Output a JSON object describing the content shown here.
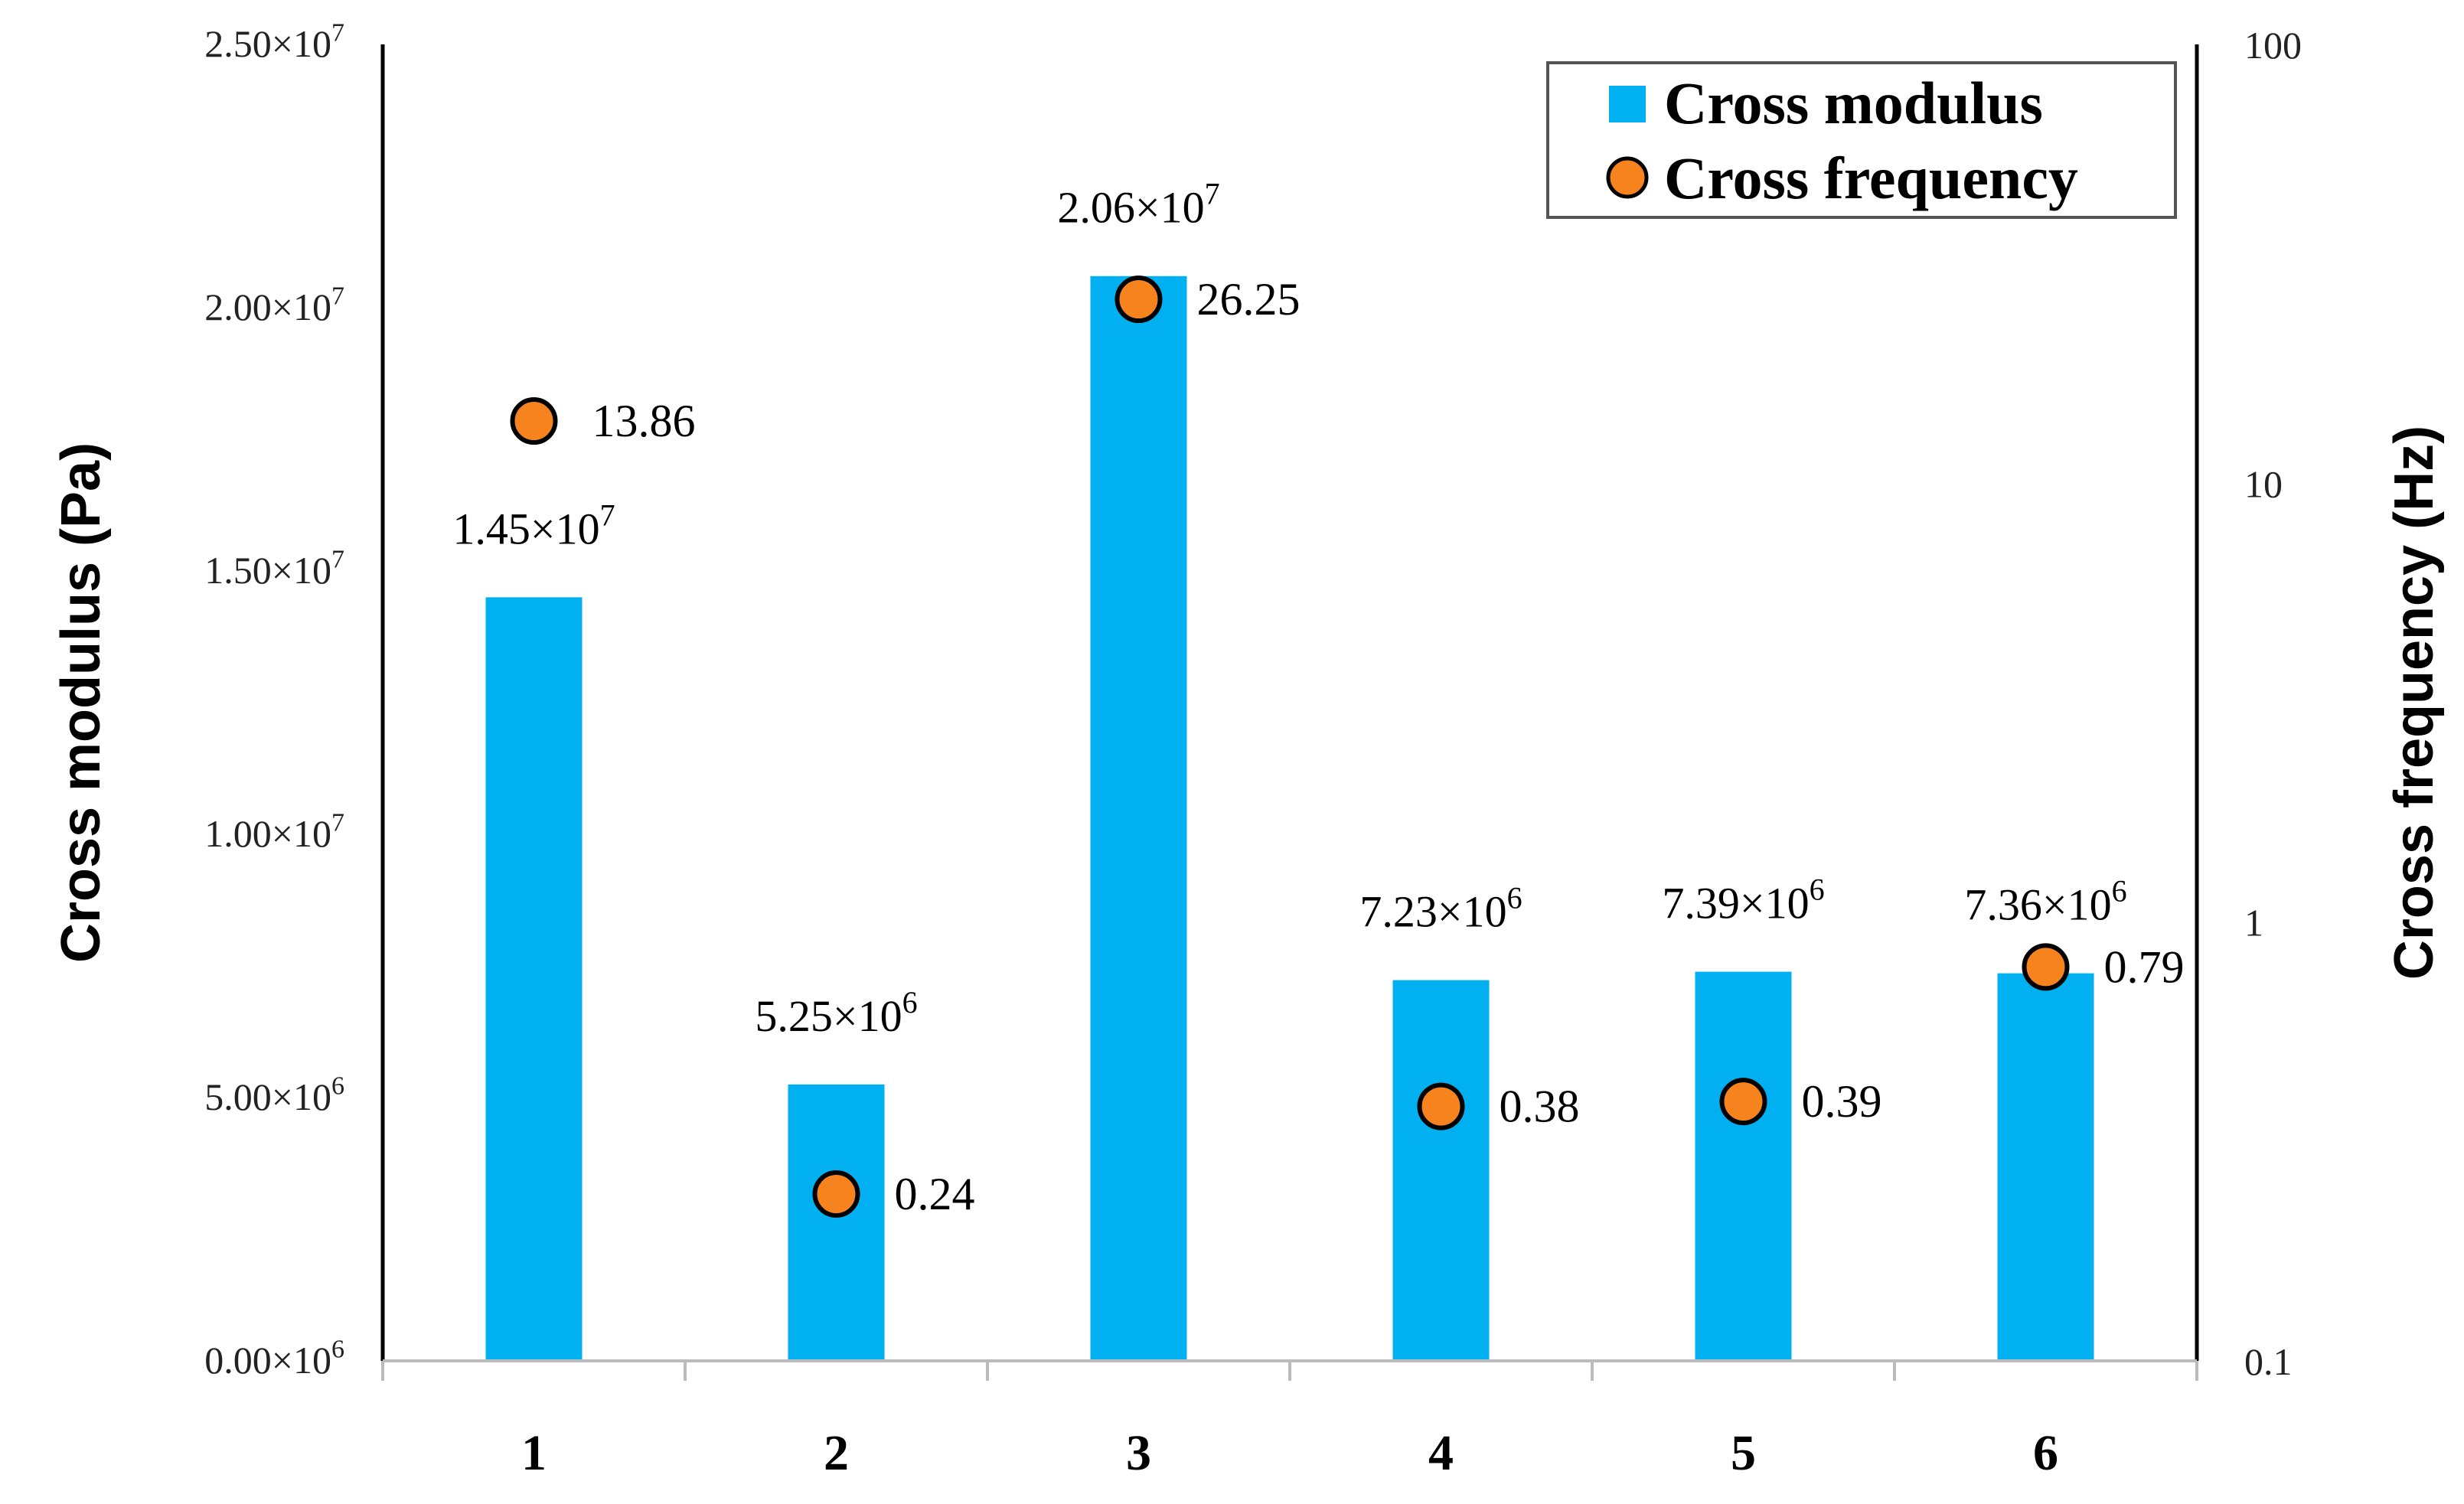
{
  "chart_data": {
    "type": "bar+scatter",
    "categories": [
      "1",
      "2",
      "3",
      "4",
      "5",
      "6"
    ],
    "series": [
      {
        "name": "Cross modulus",
        "kind": "bar",
        "axis": "left",
        "color": "#00B0F0",
        "values": [
          14500000,
          5250000,
          20600000,
          7230000,
          7390000,
          7360000
        ],
        "labels": [
          {
            "mantissa": "1.45×10",
            "exp": "7"
          },
          {
            "mantissa": "5.25×10",
            "exp": "6"
          },
          {
            "mantissa": "2.06×10",
            "exp": "7"
          },
          {
            "mantissa": "7.23×10",
            "exp": "6"
          },
          {
            "mantissa": "7.39×10",
            "exp": "6"
          },
          {
            "mantissa": "7.36×10",
            "exp": "6"
          }
        ]
      },
      {
        "name": "Cross frequency",
        "kind": "scatter",
        "axis": "right",
        "color": "#F7831E",
        "values": [
          13.86,
          0.24,
          26.25,
          0.38,
          0.39,
          0.79
        ],
        "labels": [
          "13.86",
          "0.24",
          "26.25",
          "0.38",
          "0.39",
          "0.79"
        ]
      }
    ],
    "y_left": {
      "label": "Cross modulus (Pa)",
      "lim": [
        0,
        25000000
      ],
      "ticks": [
        {
          "value": 0,
          "mantissa": "0.00×10",
          "exp": "6"
        },
        {
          "value": 5000000,
          "mantissa": "5.00×10",
          "exp": "6"
        },
        {
          "value": 10000000,
          "mantissa": "1.00×10",
          "exp": "7"
        },
        {
          "value": 15000000,
          "mantissa": "1.50×10",
          "exp": "7"
        },
        {
          "value": 20000000,
          "mantissa": "2.00×10",
          "exp": "7"
        },
        {
          "value": 25000000,
          "mantissa": "2.50×10",
          "exp": "7"
        }
      ]
    },
    "y_right": {
      "label": "Cross frequency (Hz)",
      "scale": "log",
      "lim": [
        0.1,
        100
      ],
      "ticks": [
        {
          "value": 0.1,
          "label": "0.1"
        },
        {
          "value": 1,
          "label": "1"
        },
        {
          "value": 10,
          "label": "10"
        },
        {
          "value": 100,
          "label": "100"
        }
      ]
    },
    "legend": {
      "position": "top-right",
      "entries": [
        "Cross modulus",
        "Cross frequency"
      ]
    },
    "grid": false
  }
}
